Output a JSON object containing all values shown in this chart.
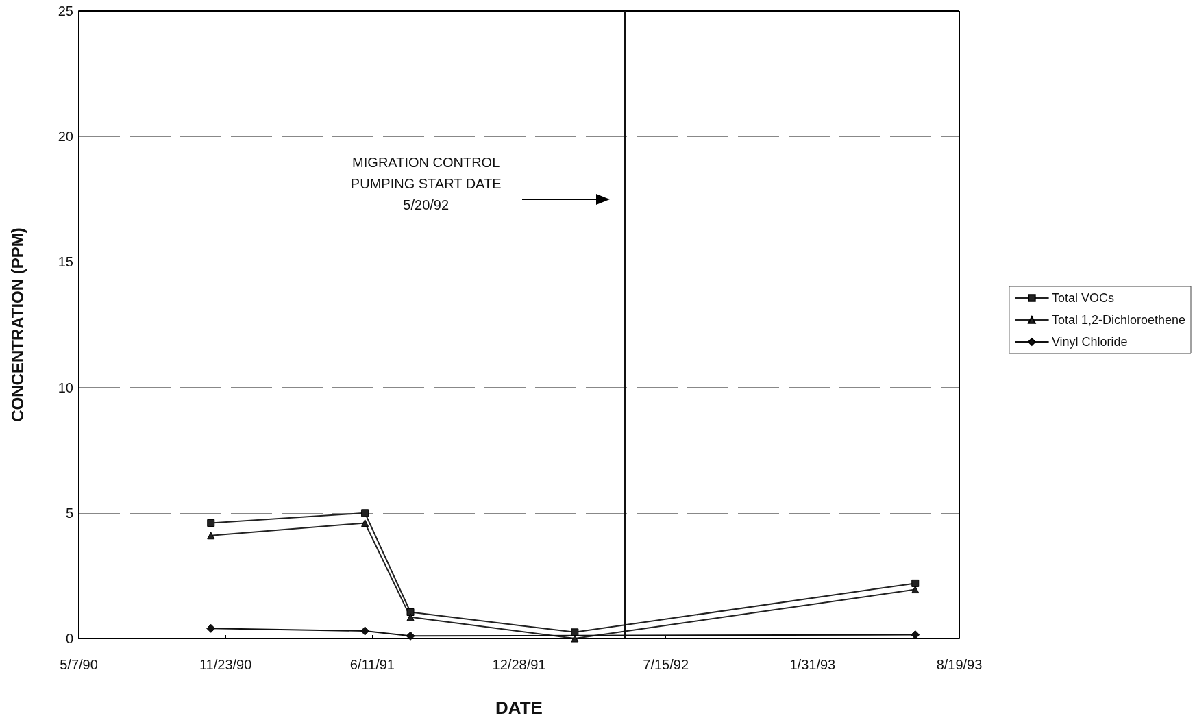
{
  "chart_data": {
    "type": "line",
    "xlabel": "DATE",
    "ylabel": "CONCENTRATION (PPM)",
    "x": [
      "1990-11-03",
      "1991-06-01",
      "1991-08-02",
      "1992-03-13",
      "1993-06-20"
    ],
    "series": [
      {
        "name": "Total VOCs",
        "color": "#222222",
        "marker": "square",
        "values": [
          4.6,
          5.0,
          1.05,
          0.25,
          2.2
        ]
      },
      {
        "name": "Total 1,2-Dichloroethene",
        "color": "#222222",
        "marker": "triangle",
        "values": [
          4.1,
          4.6,
          0.85,
          0,
          1.95
        ]
      },
      {
        "name": "Vinyl Chloride",
        "color": "#111111",
        "marker": "diamond",
        "values": [
          0.4,
          0.3,
          0.1,
          null,
          0.15
        ]
      }
    ],
    "xlim": [
      "1990-05-07",
      "1993-08-19"
    ],
    "xticks": [
      {
        "value": "1990-05-07",
        "label": "5/7/90"
      },
      {
        "value": "1990-11-23",
        "label": "11/23/90"
      },
      {
        "value": "1991-06-11",
        "label": "6/11/91"
      },
      {
        "value": "1991-12-28",
        "label": "12/28/91"
      },
      {
        "value": "1992-07-15",
        "label": "7/15/92"
      },
      {
        "value": "1993-01-31",
        "label": "1/31/93"
      },
      {
        "value": "1993-08-19",
        "label": "8/19/93"
      }
    ],
    "ylim": [
      0,
      25
    ],
    "yticks": [
      0,
      5,
      10,
      15,
      20,
      25
    ],
    "ref_lines": [
      {
        "axis": "x",
        "value": "1992-05-20",
        "color": "#111111"
      }
    ],
    "annotations": [
      "MIGRATION CONTROL\nPUMPING START DATE\n5/20/92"
    ],
    "grid": "y",
    "legend": "right",
    "line_style": "solid"
  }
}
